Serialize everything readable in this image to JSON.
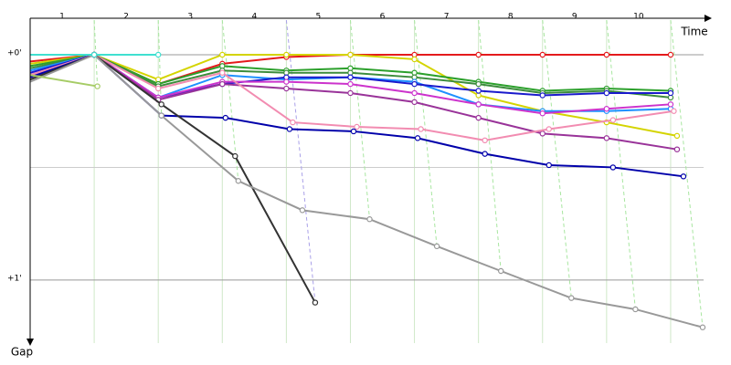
{
  "chart_data": {
    "type": "line",
    "x_label": "Time",
    "y_label": "Gap",
    "categories": [
      "1",
      "2",
      "3",
      "4",
      "5",
      "6",
      "7",
      "8",
      "9",
      "10"
    ],
    "xlim": [
      0,
      10.6
    ],
    "ylim": [
      -0.16,
      1.28
    ],
    "yticks": [
      {
        "value": 0,
        "label": "+0'"
      },
      {
        "value": 1,
        "label": "+1'"
      }
    ],
    "minor_yticks": [
      0.5
    ],
    "series": [
      {
        "color": "#e41a1c",
        "x": [
          0,
          1,
          2,
          3,
          4,
          5,
          6,
          7,
          8,
          9,
          10
        ],
        "values": [
          0.03,
          0,
          0.13,
          0.04,
          0.01,
          0,
          0,
          0,
          0,
          0,
          0
        ]
      },
      {
        "color": "#d4d400",
        "x": [
          0,
          1,
          2,
          3,
          4,
          5,
          6,
          7,
          8,
          9,
          10.1
        ],
        "values": [
          0.04,
          0,
          0.11,
          0,
          0,
          0,
          0.02,
          0.18,
          0.25,
          0.3,
          0.36
        ]
      },
      {
        "color": "#2ca02c",
        "x": [
          0,
          1,
          2,
          3,
          4,
          5,
          6,
          7,
          8,
          9,
          10
        ],
        "values": [
          0.05,
          0,
          0.13,
          0.05,
          0.07,
          0.06,
          0.08,
          0.12,
          0.16,
          0.15,
          0.16
        ]
      },
      {
        "color": "#3c8c3c",
        "x": [
          0,
          1,
          2,
          3,
          4,
          5,
          6,
          7,
          8,
          9,
          10
        ],
        "values": [
          0.06,
          0,
          0.14,
          0.07,
          0.08,
          0.08,
          0.1,
          0.13,
          0.17,
          0.16,
          0.19
        ]
      },
      {
        "color": "#1e90ff",
        "x": [
          0,
          1,
          2,
          3,
          4,
          5,
          6,
          7,
          8,
          9,
          10
        ],
        "values": [
          0.07,
          0,
          0.19,
          0.09,
          0.11,
          0.1,
          0.12,
          0.22,
          0.25,
          0.25,
          0.24
        ]
      },
      {
        "color": "#1a1acc",
        "x": [
          0,
          1,
          2,
          3,
          4,
          5,
          6,
          7,
          8,
          9,
          10
        ],
        "values": [
          0.08,
          0,
          0.19,
          0.13,
          0.1,
          0.1,
          0.13,
          0.16,
          0.18,
          0.17,
          0.17
        ]
      },
      {
        "color": "#cc33cc",
        "x": [
          0,
          1,
          2,
          3,
          4,
          5,
          6,
          7,
          8,
          9,
          10
        ],
        "values": [
          0.09,
          0,
          0.19,
          0.12,
          0.12,
          0.13,
          0.17,
          0.22,
          0.26,
          0.24,
          0.22
        ]
      },
      {
        "color": "#993399",
        "x": [
          0,
          1,
          2,
          3,
          4,
          5,
          6,
          7,
          8,
          9,
          10.1
        ],
        "values": [
          0.1,
          0,
          0.2,
          0.13,
          0.15,
          0.17,
          0.21,
          0.28,
          0.35,
          0.37,
          0.42
        ]
      },
      {
        "color": "#f28cb1",
        "x": [
          0,
          1,
          2,
          3,
          4.1,
          5.1,
          6.1,
          7.1,
          8.1,
          9.1,
          10.05
        ],
        "values": [
          0.09,
          0,
          0.15,
          0.08,
          0.3,
          0.32,
          0.33,
          0.38,
          0.33,
          0.29,
          0.25
        ]
      },
      {
        "color": "#0000aa",
        "x": [
          0,
          1,
          2.05,
          3.05,
          4.05,
          5.05,
          6.05,
          7.1,
          8.1,
          9.1,
          10.2
        ],
        "values": [
          0.1,
          0,
          0.27,
          0.28,
          0.33,
          0.34,
          0.37,
          0.44,
          0.49,
          0.5,
          0.54
        ]
      },
      {
        "color": "#333333",
        "x": [
          0,
          1,
          2.05,
          3.2,
          4.45
        ],
        "values": [
          0.11,
          0,
          0.22,
          0.45,
          1.1
        ]
      },
      {
        "color": "#999999",
        "x": [
          0,
          1,
          2.05,
          3.25,
          4.25,
          5.3,
          6.35,
          7.35,
          8.45,
          9.45,
          10.5
        ],
        "values": [
          0.12,
          0,
          0.27,
          0.56,
          0.69,
          0.73,
          0.85,
          0.96,
          1.08,
          1.13,
          1.21
        ]
      },
      {
        "color": "#a6cc66",
        "x": [
          0,
          1.05
        ],
        "values": [
          0.09,
          0.14
        ]
      },
      {
        "color": "#40e0d0",
        "x": [
          0,
          1,
          2
        ],
        "values": [
          0,
          0,
          0
        ]
      }
    ]
  }
}
